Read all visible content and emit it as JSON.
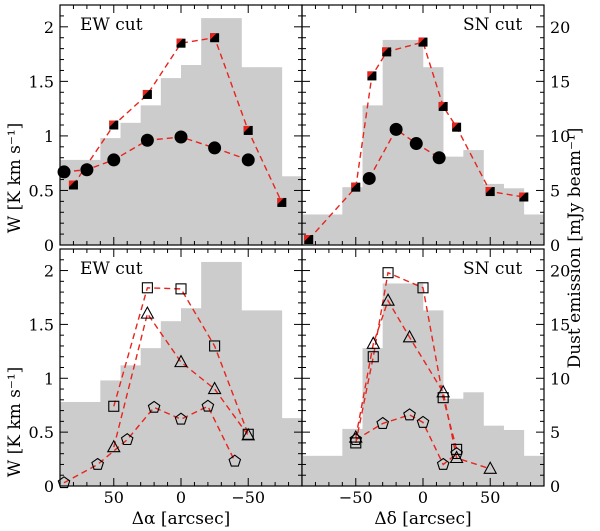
{
  "chart_data": [
    {
      "type": "mixed (histogram + scatter-line)",
      "panel": "top-left",
      "title": "EW cut",
      "xlabel": "",
      "ylabel": "W [K km s⁻¹]",
      "xlim": [
        90,
        -90
      ],
      "ylim": [
        0,
        2.2
      ],
      "y2lim": [
        0,
        22
      ],
      "histogram_dust": {
        "edges": [
          90,
          75,
          60,
          45,
          30,
          15,
          0,
          -15,
          -30,
          -45,
          -60,
          -75,
          -90
        ],
        "values": [
          7.8,
          7.8,
          9.8,
          11.2,
          12.8,
          15.3,
          16.5,
          20.8,
          20.8,
          16.3,
          16.3,
          6.3
        ]
      },
      "series": [
        {
          "name": "filled-squares",
          "marker": "filled-square",
          "x": [
            80,
            50,
            25,
            0,
            -25,
            -50,
            -75
          ],
          "y": [
            0.55,
            1.1,
            1.38,
            1.85,
            1.9,
            1.05,
            0.39
          ]
        },
        {
          "name": "filled-circles",
          "marker": "filled-circle",
          "x": [
            87,
            70,
            50,
            25,
            0,
            -25,
            -50
          ],
          "y": [
            0.67,
            0.69,
            0.78,
            0.96,
            0.99,
            0.89,
            0.78
          ]
        }
      ]
    },
    {
      "type": "mixed (histogram + scatter-line)",
      "panel": "top-right",
      "title": "SN cut",
      "xlabel": "",
      "y2label": "Dust emission [mJy beam⁻¹]",
      "xlim": [
        -90,
        90
      ],
      "ylim": [
        0,
        2.2
      ],
      "y2lim": [
        0,
        22
      ],
      "histogram_dust": {
        "edges": [
          -90,
          -75,
          -60,
          -45,
          -30,
          -15,
          0,
          15,
          30,
          45,
          60,
          75,
          90
        ],
        "values": [
          2.8,
          2.8,
          5.3,
          12.8,
          18.8,
          18.8,
          16.3,
          8.1,
          8.7,
          5.6,
          5.2,
          2.8
        ]
      },
      "series": [
        {
          "name": "filled-squares",
          "marker": "filled-square",
          "x": [
            -85,
            -50,
            -38,
            -27,
            0,
            15,
            25,
            50,
            75
          ],
          "y": [
            0.05,
            0.53,
            1.55,
            1.77,
            1.86,
            1.27,
            1.08,
            0.49,
            0.44
          ]
        },
        {
          "name": "filled-circles",
          "marker": "filled-circle",
          "x": [
            -40,
            -20,
            -5,
            12
          ],
          "y": [
            0.61,
            1.06,
            0.93,
            0.8
          ]
        }
      ]
    },
    {
      "type": "mixed (histogram + scatter-line)",
      "panel": "bottom-left",
      "title": "EW cut",
      "xlabel": "Δα [arcsec]",
      "ylabel": "W [K km s⁻¹]",
      "xlim": [
        90,
        -90
      ],
      "ylim": [
        0,
        2.2
      ],
      "y2lim": [
        0,
        22
      ],
      "histogram_dust": {
        "edges": [
          90,
          75,
          60,
          45,
          30,
          15,
          0,
          -15,
          -30,
          -45,
          -60,
          -75,
          -90
        ],
        "values": [
          7.8,
          7.8,
          9.8,
          11.2,
          12.8,
          15.3,
          16.5,
          20.8,
          20.8,
          16.3,
          16.3,
          6.3
        ]
      },
      "series": [
        {
          "name": "open-squares",
          "marker": "open-square",
          "x": [
            50,
            25,
            0,
            -25,
            -50
          ],
          "y": [
            0.74,
            1.84,
            1.83,
            1.3,
            0.48
          ]
        },
        {
          "name": "open-triangles",
          "marker": "open-triangle",
          "x": [
            50,
            25,
            0,
            -25,
            -50
          ],
          "y": [
            0.36,
            1.6,
            1.15,
            0.9,
            0.47
          ]
        },
        {
          "name": "open-pentagons",
          "marker": "open-pentagon",
          "x": [
            87,
            62,
            40,
            20,
            0,
            -20,
            -40
          ],
          "y": [
            0.03,
            0.2,
            0.43,
            0.73,
            0.62,
            0.74,
            0.23
          ]
        }
      ]
    },
    {
      "type": "mixed (histogram + scatter-line)",
      "panel": "bottom-right",
      "title": "SN cut",
      "xlabel": "Δδ [arcsec]",
      "y2label": "Dust emission [mJy beam⁻¹]",
      "xlim": [
        -90,
        90
      ],
      "ylim": [
        0,
        2.2
      ],
      "y2lim": [
        0,
        22
      ],
      "histogram_dust": {
        "edges": [
          -90,
          -75,
          -60,
          -45,
          -30,
          -15,
          0,
          15,
          30,
          45,
          60,
          75,
          90
        ],
        "values": [
          2.8,
          2.8,
          5.3,
          12.8,
          18.8,
          18.8,
          16.3,
          8.1,
          8.7,
          5.6,
          5.2,
          2.8
        ]
      },
      "series": [
        {
          "name": "open-squares",
          "marker": "open-square",
          "x": [
            -50,
            -37,
            -26,
            0,
            15,
            25
          ],
          "y": [
            0.4,
            1.2,
            1.98,
            1.84,
            0.82,
            0.34
          ]
        },
        {
          "name": "open-triangles",
          "marker": "open-triangle",
          "x": [
            -50,
            -37,
            -26,
            -10,
            15,
            25,
            50
          ],
          "y": [
            0.45,
            1.32,
            1.72,
            1.38,
            0.87,
            0.26,
            0.16
          ]
        },
        {
          "name": "open-pentagons",
          "marker": "open-pentagon",
          "x": [
            -50,
            -30,
            -10,
            0,
            15,
            25
          ],
          "y": [
            0.43,
            0.58,
            0.66,
            0.59,
            0.2,
            0.3
          ]
        }
      ]
    }
  ],
  "axes": {
    "y_ticks": [
      0,
      0.5,
      1,
      1.5,
      2
    ],
    "y_tick_labels": [
      "0",
      "0.5",
      "1",
      "1.5",
      "2"
    ],
    "y2_ticks": [
      0,
      5,
      10,
      15,
      20
    ],
    "y2_tick_labels": [
      "0",
      "5",
      "10",
      "15",
      "20"
    ],
    "x_ticks_ew": [
      50,
      0,
      -50
    ],
    "x_tick_labels_ew": [
      "50",
      "0",
      "−50"
    ],
    "x_ticks_sn": [
      -50,
      0,
      50
    ],
    "x_tick_labels_sn": [
      "−50",
      "0",
      "50"
    ]
  },
  "style": {
    "histogram_color": "#cccccc",
    "line_color": "#e8241c",
    "marker_fill": "#000000",
    "square_inner": "#e8241c"
  }
}
